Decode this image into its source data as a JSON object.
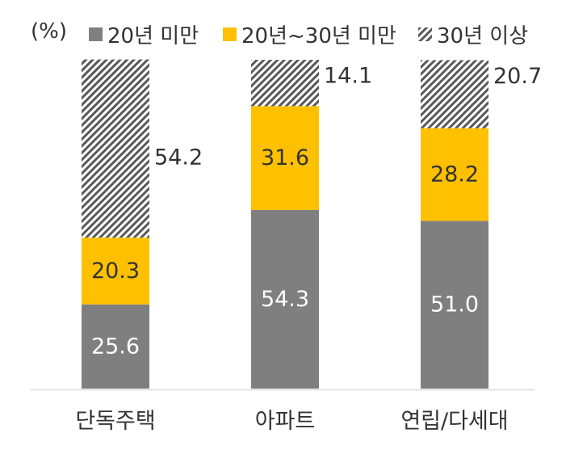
{
  "chart_data": {
    "type": "bar",
    "stacked": true,
    "unit_label": "(%)",
    "categories": [
      "단독주택",
      "아파트",
      "연립/다세대"
    ],
    "series": [
      {
        "name": "20년 미만",
        "values": [
          25.6,
          54.3,
          51.0
        ],
        "labels": [
          "25.6",
          "54.3",
          "51.0"
        ],
        "color": "#7f7f7f",
        "pattern": "solid"
      },
      {
        "name": "20년~30년 미만",
        "values": [
          20.3,
          31.6,
          28.2
        ],
        "labels": [
          "20.3",
          "31.6",
          "28.2"
        ],
        "color": "#ffc000",
        "pattern": "solid"
      },
      {
        "name": "30년 이상",
        "values": [
          54.2,
          14.1,
          20.7
        ],
        "labels": [
          "54.2",
          "14.1",
          "20.7"
        ],
        "color": "#595959",
        "pattern": "diagonal-hatch"
      }
    ],
    "ylim": [
      0,
      100
    ],
    "grid": false,
    "legend_position": "top"
  }
}
